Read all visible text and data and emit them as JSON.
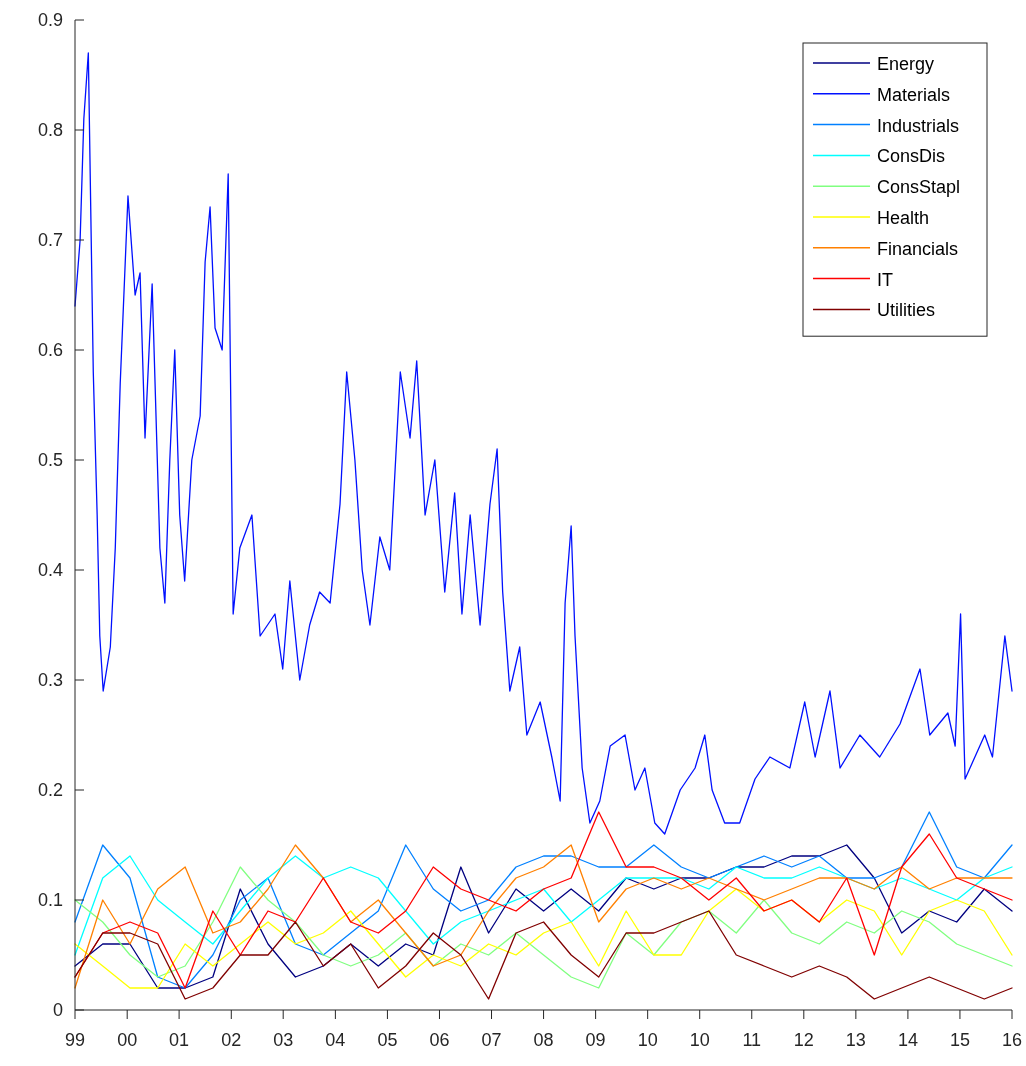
{
  "chart_data": {
    "type": "line",
    "x": [
      "1999-11-25",
      "2000-05-22",
      "2000-11-14",
      "2001-05-12",
      "2001-11-05",
      "2002-05-03",
      "2002-10-27",
      "2003-04-24",
      "2003-10-18",
      "2004-04-15",
      "2004-10-09",
      "2005-04-05",
      "2005-09-29",
      "2006-03-26",
      "2006-09-20",
      "2007-03-18",
      "2007-09-11",
      "2008-03-07",
      "2008-09-01",
      "2009-02-26",
      "2009-08-22",
      "2010-02-17",
      "2010-08-13",
      "2011-02-07",
      "2011-08-03",
      "2012-01-29",
      "2012-07-26",
      "2013-01-20",
      "2013-07-16",
      "2014-01-10",
      "2014-07-06",
      "2014-12-31",
      "2015-06-26",
      "2015-12-21",
      "2016-06-17"
    ],
    "series": [
      {
        "name": "Energy",
        "color": "#000080",
        "values": [
          0.04,
          0.06,
          0.06,
          0.02,
          0.02,
          0.03,
          0.11,
          0.06,
          0.03,
          0.04,
          0.06,
          0.04,
          0.06,
          0.05,
          0.13,
          0.07,
          0.11,
          0.09,
          0.11,
          0.09,
          0.12,
          0.11,
          0.12,
          0.12,
          0.13,
          0.13,
          0.14,
          0.14,
          0.15,
          0.12,
          0.07,
          0.09,
          0.08,
          0.11,
          0.09
        ]
      },
      {
        "name": "Materials",
        "color": "#0010ff",
        "x": [
          "1999-11-25",
          "1999-12-28",
          "2000-01-21",
          "2000-02-19",
          "2000-03-22",
          "2000-04-16",
          "2000-05-03",
          "2000-05-25",
          "2000-07-10",
          "2000-08-11",
          "2000-09-12",
          "2000-11-01",
          "2000-12-17",
          "2001-01-18",
          "2001-02-19",
          "2001-04-06",
          "2001-05-26",
          "2001-06-27",
          "2001-07-29",
          "2001-08-30",
          "2001-10-01",
          "2001-11-02",
          "2001-12-18",
          "2002-02-10",
          "2002-03-14",
          "2002-04-15",
          "2002-05-17",
          "2002-07-02",
          "2002-08-10",
          "2002-09-11",
          "2002-10-24",
          "2003-01-10",
          "2003-03-04",
          "2003-06-08",
          "2003-07-28",
          "2003-09-12",
          "2003-11-15",
          "2004-01-18",
          "2004-03-22",
          "2004-05-29",
          "2004-08-01",
          "2004-09-13",
          "2004-11-05",
          "2004-12-22",
          "2005-02-10",
          "2005-04-15",
          "2005-06-18",
          "2005-08-25",
          "2005-10-27",
          "2005-12-09",
          "2006-02-01",
          "2006-04-05",
          "2006-06-08",
          "2006-08-11",
          "2006-09-27",
          "2006-11-19",
          "2007-01-22",
          "2007-03-27",
          "2007-05-12",
          "2007-06-17",
          "2007-08-02",
          "2007-10-05",
          "2007-11-20",
          "2008-02-14",
          "2008-04-29",
          "2008-06-22",
          "2008-07-24",
          "2008-09-01",
          "2008-09-26",
          "2008-11-11",
          "2008-12-31",
          "2009-03-05",
          "2009-05-11",
          "2009-08-15",
          "2009-10-18",
          "2009-12-21",
          "2010-02-23",
          "2010-04-28",
          "2010-08-06",
          "2010-11-10",
          "2011-01-12",
          "2011-02-28",
          "2011-05-20",
          "2011-08-25",
          "2011-12-02",
          "2012-03-07",
          "2012-07-14",
          "2012-10-18",
          "2012-12-24",
          "2013-03-30",
          "2013-06-03",
          "2013-10-09",
          "2014-02-14",
          "2014-06-25",
          "2014-11-01",
          "2015-01-03",
          "2015-04-30",
          "2015-06-16",
          "2015-07-21",
          "2015-08-19",
          "2015-12-24",
          "2016-02-12",
          "2016-05-02",
          "2016-06-17"
        ],
        "values": [
          0.64,
          0.7,
          0.81,
          0.87,
          0.58,
          0.45,
          0.34,
          0.29,
          0.33,
          0.42,
          0.57,
          0.74,
          0.65,
          0.67,
          0.52,
          0.66,
          0.42,
          0.37,
          0.5,
          0.6,
          0.45,
          0.39,
          0.5,
          0.54,
          0.68,
          0.73,
          0.62,
          0.6,
          0.76,
          0.36,
          0.42,
          0.45,
          0.34,
          0.36,
          0.31,
          0.39,
          0.3,
          0.35,
          0.38,
          0.37,
          0.46,
          0.58,
          0.5,
          0.4,
          0.35,
          0.43,
          0.4,
          0.58,
          0.52,
          0.59,
          0.45,
          0.5,
          0.38,
          0.47,
          0.36,
          0.45,
          0.35,
          0.46,
          0.51,
          0.38,
          0.29,
          0.33,
          0.25,
          0.28,
          0.23,
          0.19,
          0.37,
          0.44,
          0.34,
          0.22,
          0.17,
          0.19,
          0.24,
          0.25,
          0.2,
          0.22,
          0.17,
          0.16,
          0.2,
          0.22,
          0.25,
          0.2,
          0.17,
          0.17,
          0.21,
          0.23,
          0.22,
          0.28,
          0.23,
          0.29,
          0.22,
          0.25,
          0.23,
          0.26,
          0.31,
          0.25,
          0.27,
          0.24,
          0.36,
          0.21,
          0.25,
          0.23,
          0.34,
          0.29
        ]
      },
      {
        "name": "Industrials",
        "color": "#0080ff",
        "values": [
          0.08,
          0.15,
          0.12,
          0.03,
          0.02,
          0.05,
          0.1,
          0.12,
          0.06,
          0.05,
          0.07,
          0.09,
          0.15,
          0.11,
          0.09,
          0.1,
          0.13,
          0.14,
          0.14,
          0.13,
          0.13,
          0.15,
          0.13,
          0.12,
          0.13,
          0.14,
          0.13,
          0.14,
          0.12,
          0.12,
          0.13,
          0.18,
          0.13,
          0.12,
          0.15
        ]
      },
      {
        "name": "ConsDis",
        "color": "#00ffff",
        "values": [
          0.05,
          0.12,
          0.14,
          0.1,
          0.08,
          0.06,
          0.09,
          0.12,
          0.14,
          0.12,
          0.13,
          0.12,
          0.09,
          0.06,
          0.08,
          0.09,
          0.1,
          0.11,
          0.08,
          0.1,
          0.12,
          0.12,
          0.12,
          0.11,
          0.13,
          0.12,
          0.12,
          0.13,
          0.12,
          0.11,
          0.12,
          0.11,
          0.1,
          0.12,
          0.13
        ]
      },
      {
        "name": "ConsStapl",
        "color": "#80ff80",
        "values": [
          0.1,
          0.08,
          0.05,
          0.03,
          0.04,
          0.08,
          0.13,
          0.1,
          0.08,
          0.05,
          0.04,
          0.05,
          0.07,
          0.04,
          0.06,
          0.05,
          0.07,
          0.05,
          0.03,
          0.02,
          0.07,
          0.05,
          0.08,
          0.09,
          0.07,
          0.1,
          0.07,
          0.06,
          0.08,
          0.07,
          0.09,
          0.08,
          0.06,
          0.05,
          0.04
        ]
      },
      {
        "name": "Health",
        "color": "#ffff00",
        "values": [
          0.06,
          0.04,
          0.02,
          0.02,
          0.06,
          0.04,
          0.06,
          0.08,
          0.06,
          0.07,
          0.09,
          0.06,
          0.03,
          0.05,
          0.04,
          0.06,
          0.05,
          0.07,
          0.08,
          0.04,
          0.09,
          0.05,
          0.05,
          0.09,
          0.11,
          0.09,
          0.1,
          0.08,
          0.1,
          0.09,
          0.05,
          0.09,
          0.1,
          0.09,
          0.05
        ]
      },
      {
        "name": "Financials",
        "color": "#ff8000",
        "values": [
          0.02,
          0.1,
          0.06,
          0.11,
          0.13,
          0.07,
          0.08,
          0.11,
          0.15,
          0.12,
          0.08,
          0.1,
          0.07,
          0.04,
          0.05,
          0.09,
          0.12,
          0.13,
          0.15,
          0.08,
          0.11,
          0.12,
          0.11,
          0.12,
          0.11,
          0.1,
          0.11,
          0.12,
          0.12,
          0.11,
          0.13,
          0.11,
          0.12,
          0.12,
          0.12
        ]
      },
      {
        "name": "IT",
        "color": "#ff0000",
        "values": [
          0.03,
          0.07,
          0.08,
          0.07,
          0.02,
          0.09,
          0.05,
          0.09,
          0.08,
          0.12,
          0.08,
          0.07,
          0.09,
          0.13,
          0.11,
          0.1,
          0.09,
          0.11,
          0.12,
          0.18,
          0.13,
          0.13,
          0.12,
          0.1,
          0.12,
          0.09,
          0.1,
          0.08,
          0.12,
          0.05,
          0.13,
          0.16,
          0.12,
          0.11,
          0.1
        ]
      },
      {
        "name": "Utilities",
        "color": "#800000",
        "values": [
          0.03,
          0.07,
          0.07,
          0.06,
          0.01,
          0.02,
          0.05,
          0.05,
          0.08,
          0.04,
          0.06,
          0.02,
          0.04,
          0.07,
          0.05,
          0.01,
          0.07,
          0.08,
          0.05,
          0.03,
          0.07,
          0.07,
          0.08,
          0.09,
          0.05,
          0.04,
          0.03,
          0.04,
          0.03,
          0.01,
          0.02,
          0.03,
          0.02,
          0.01,
          0.02
        ]
      }
    ],
    "xlim": [
      "1999-11-25",
      "2016-06-17"
    ],
    "xticks": [
      {
        "value": "1999-11-25",
        "label": "99"
      },
      {
        "value": "2000-10-27",
        "label": "00"
      },
      {
        "value": "2001-09-27",
        "label": "01"
      },
      {
        "value": "2002-08-30",
        "label": "02"
      },
      {
        "value": "2003-07-31",
        "label": "03"
      },
      {
        "value": "2004-07-02",
        "label": "04"
      },
      {
        "value": "2005-06-03",
        "label": "05"
      },
      {
        "value": "2006-05-05",
        "label": "06"
      },
      {
        "value": "2007-04-06",
        "label": "07"
      },
      {
        "value": "2008-03-07",
        "label": "08"
      },
      {
        "value": "2009-02-06",
        "label": "09"
      },
      {
        "value": "2010-01-08",
        "label": "10"
      },
      {
        "value": "2010-12-10",
        "label": "10"
      },
      {
        "value": "2011-11-11",
        "label": "11"
      },
      {
        "value": "2012-10-12",
        "label": "12"
      },
      {
        "value": "2013-09-13",
        "label": "13"
      },
      {
        "value": "2014-08-15",
        "label": "14"
      },
      {
        "value": "2015-07-17",
        "label": "15"
      },
      {
        "value": "2016-06-17",
        "label": "16"
      }
    ],
    "ylim": [
      0,
      0.9
    ],
    "yticks": [
      0,
      0.1,
      0.2,
      0.3,
      0.4,
      0.5,
      0.6,
      0.7,
      0.8,
      0.9
    ],
    "grid": false,
    "legend": "top right",
    "marker": "none",
    "line_style": "solid"
  }
}
